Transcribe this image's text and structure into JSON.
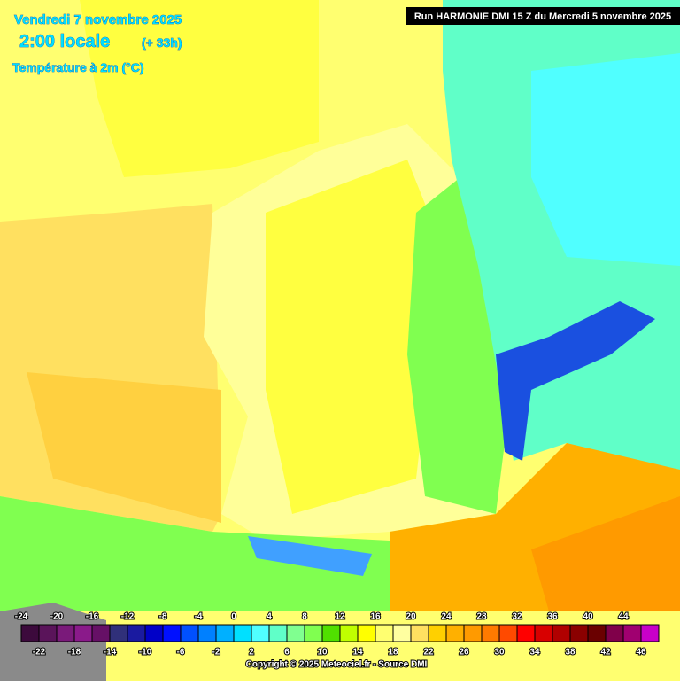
{
  "header": {
    "date": "Vendredi 7 novembre 2025",
    "time": "2:00 locale",
    "lead": "(+ 33h)",
    "parameter": "Température à 2m (°C)",
    "run": "Run HARMONIE DMI 15 Z du Mercredi 5 novembre 2025"
  },
  "legend": {
    "steps": [
      -24,
      -22,
      -20,
      -18,
      -16,
      -14,
      -12,
      -10,
      -8,
      -6,
      -4,
      -2,
      0,
      2,
      4,
      6,
      8,
      10,
      12,
      14,
      16,
      18,
      20,
      22,
      24,
      26,
      28,
      30,
      32,
      34,
      36,
      38,
      40,
      42,
      44,
      46
    ],
    "colors": [
      "#3c0a3c",
      "#5a145a",
      "#7a1a7a",
      "#8a1a8a",
      "#661066",
      "#30307a",
      "#1a1aa0",
      "#0000c8",
      "#0010ff",
      "#0050ff",
      "#0080ff",
      "#00b0ff",
      "#00e0ff",
      "#50ffff",
      "#60ffc8",
      "#80ff90",
      "#80ff50",
      "#50e000",
      "#c0ff00",
      "#ffff00",
      "#ffff70",
      "#ffffa0",
      "#ffe060",
      "#ffd000",
      "#ffb000",
      "#ff9a00",
      "#ff7a00",
      "#ff4a00",
      "#ff0000",
      "#d80000",
      "#b00000",
      "#8a0000",
      "#6a0000",
      "#80004a",
      "#a00070",
      "#c800c8",
      "#ff00ff",
      "#ff60ff",
      "#ff9aff"
    ]
  },
  "footer": {
    "copyright": "Copyright © 2025 Meteociel.fr - Source DMI"
  }
}
